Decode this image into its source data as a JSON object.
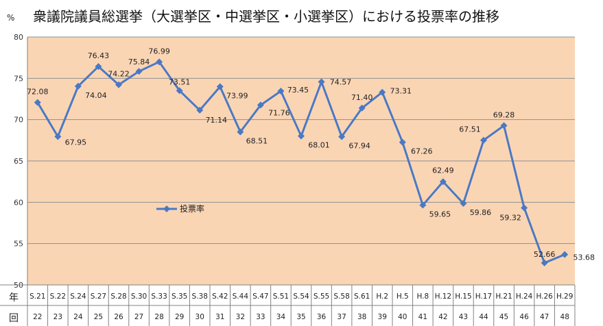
{
  "chart_data": {
    "type": "line",
    "title": "衆議院議員総選挙（大選挙区・中選挙区・小選挙区）における投票率の推移",
    "unit": "%",
    "row_labels": [
      "年",
      "回"
    ],
    "ylim": [
      50,
      80
    ],
    "yticks": [
      50,
      55,
      60,
      65,
      70,
      75,
      80
    ],
    "grid": true,
    "legend": "left-middle",
    "categories": [
      "S.21",
      "S.22",
      "S.24",
      "S.27",
      "S.28",
      "S.30",
      "S.33",
      "S.35",
      "S.38",
      "S.42",
      "S.44",
      "S.47",
      "S.51",
      "S.54",
      "S.55",
      "S.58",
      "S.61",
      "H.2",
      "H.5",
      "H.8",
      "H.12",
      "H.15",
      "H.17",
      "H.21",
      "H.24",
      "H.26",
      "H.29"
    ],
    "rounds": [
      "22",
      "23",
      "24",
      "25",
      "26",
      "27",
      "28",
      "29",
      "30",
      "31",
      "32",
      "33",
      "34",
      "35",
      "36",
      "37",
      "38",
      "39",
      "40",
      "41",
      "42",
      "43",
      "44",
      "45",
      "46",
      "47",
      "48"
    ],
    "series": [
      {
        "name": "投票率",
        "values": [
          72.08,
          67.95,
          74.04,
          76.43,
          74.22,
          75.84,
          76.99,
          73.51,
          71.14,
          73.99,
          68.51,
          71.76,
          73.45,
          68.01,
          74.57,
          67.94,
          71.4,
          73.31,
          67.26,
          59.65,
          62.49,
          59.86,
          67.51,
          69.28,
          59.32,
          52.66,
          53.68
        ],
        "labels": [
          "72.08",
          "67.95",
          "74.04",
          "76.43",
          "74.22",
          "75.84",
          "76.99",
          "73.51",
          "71.14",
          "73.99",
          "68.51",
          "71.76",
          "73.45",
          "68.01",
          "74.57",
          "67.94",
          "71.40",
          "73.31",
          "67.26",
          "59.65",
          "62.49",
          "59.86",
          "67.51",
          "69.28",
          "59.32",
          "52.66",
          "53.68"
        ]
      }
    ],
    "colors": {
      "plot_bg": "#FAD5B4",
      "line": "#4A79C4",
      "grid": "#8F8F8F",
      "axis": "#808080"
    }
  }
}
